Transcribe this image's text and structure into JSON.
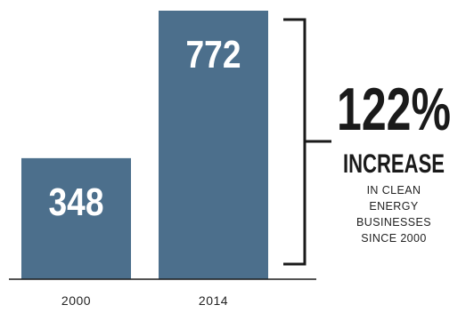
{
  "chart_data": {
    "type": "bar",
    "categories": [
      "2000",
      "2014"
    ],
    "values": [
      348,
      772
    ],
    "data_labels": [
      "348",
      "772"
    ],
    "bar_color": "#4c6f8c",
    "ylim": [
      0,
      772
    ],
    "grid": false,
    "annotation": {
      "percent": "122%",
      "headline": "INCREASE",
      "lines": [
        "IN CLEAN",
        "ENERGY",
        "BUSINESSES",
        "SINCE 2000"
      ],
      "bracket": "spans both bars"
    }
  }
}
